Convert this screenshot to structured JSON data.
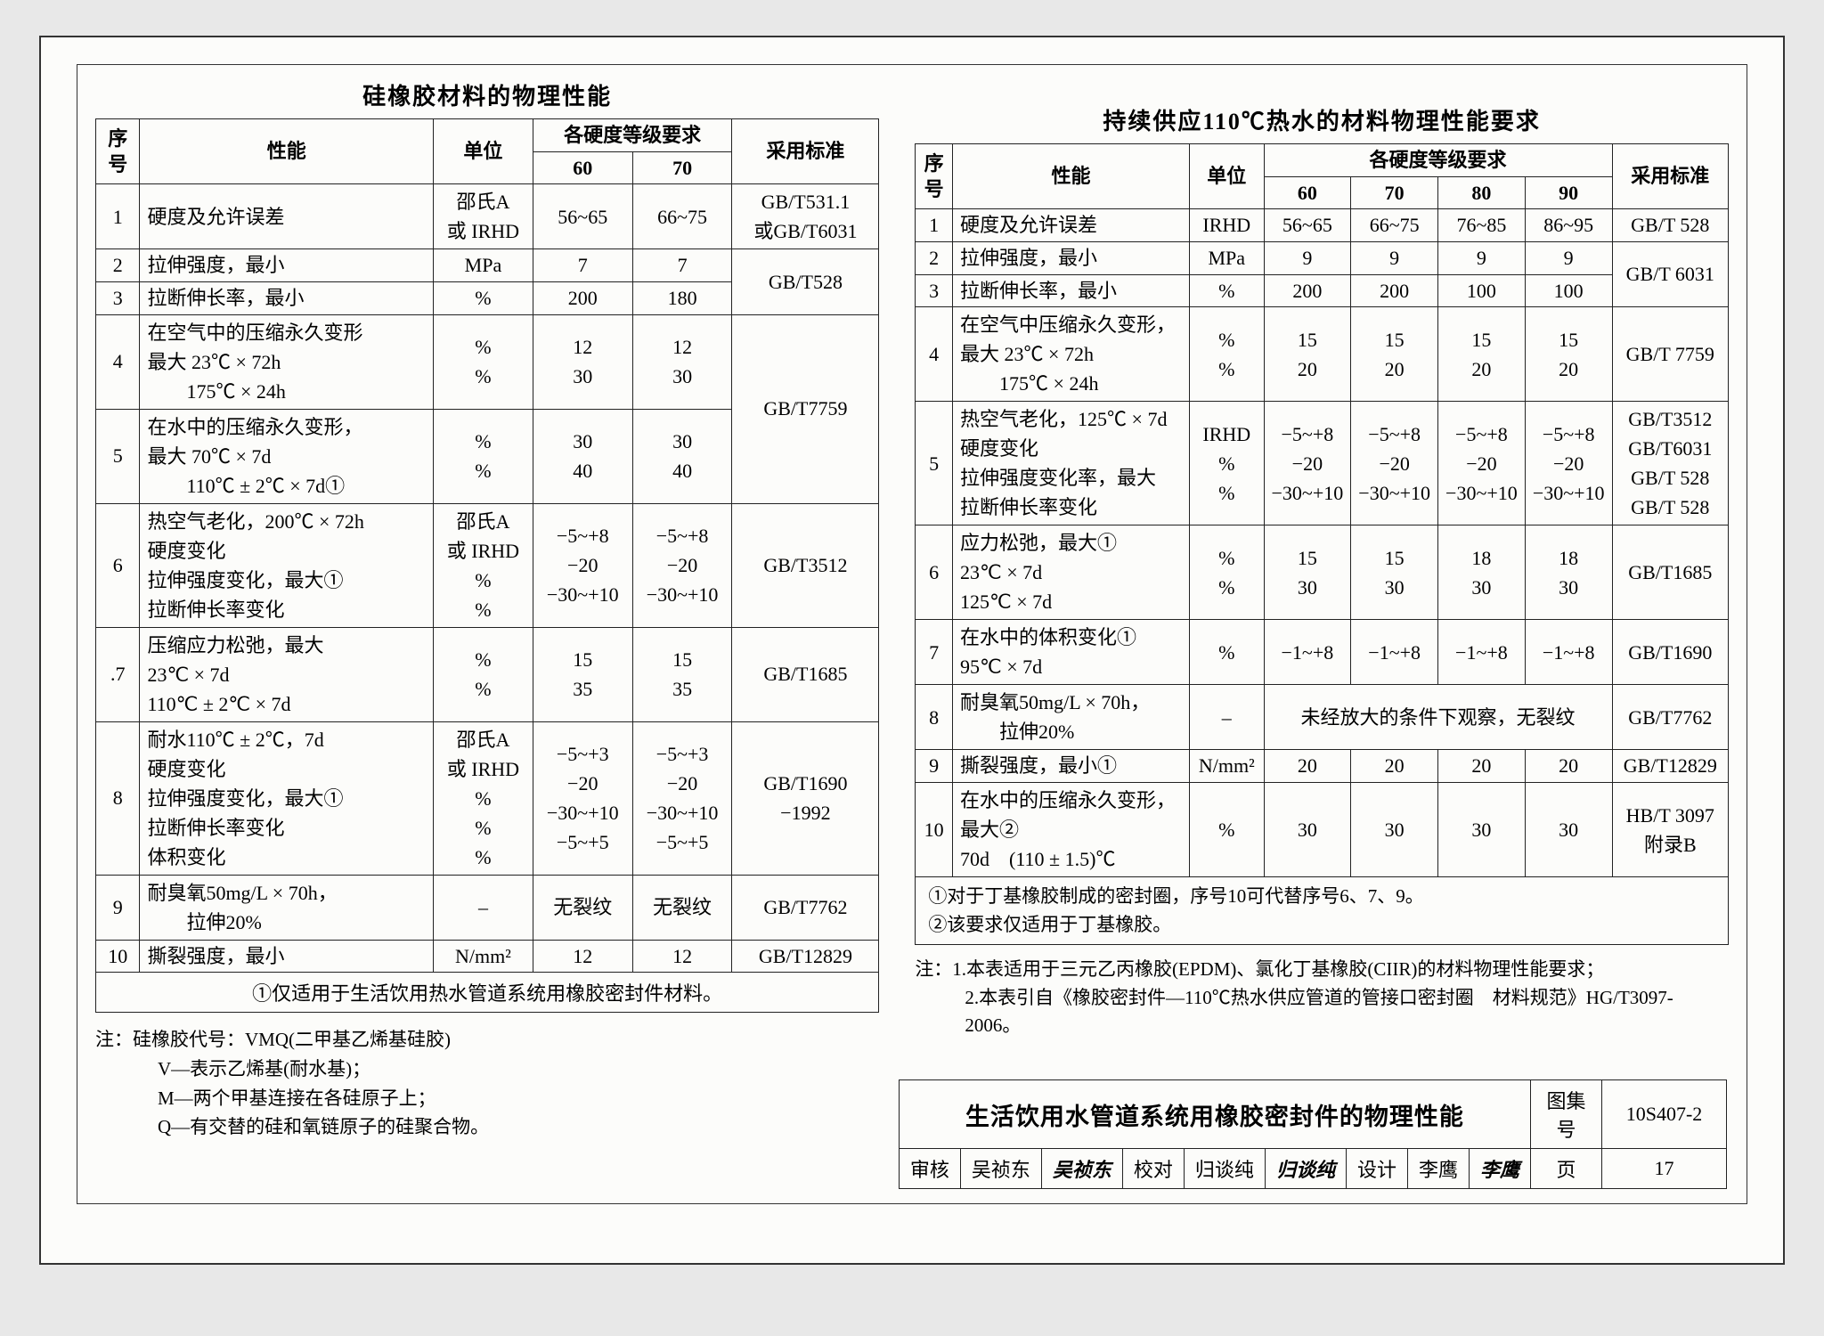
{
  "leftTable": {
    "title": "硅橡胶材料的物理性能",
    "headers": {
      "seq": "序号",
      "prop": "性能",
      "unit": "单位",
      "hardGroup": "各硬度等级要求",
      "h60": "60",
      "h70": "70",
      "std": "采用标准"
    },
    "rows": {
      "r1": {
        "seq": "1",
        "prop": "硬度及允许误差",
        "unit": "邵氏A\n或 IRHD",
        "v60": "56~65",
        "v70": "66~75",
        "std": "GB/T531.1\n或GB/T6031"
      },
      "r2": {
        "seq": "2",
        "prop": "拉伸强度，最小",
        "unit": "MPa",
        "v60": "7",
        "v70": "7",
        "std": "GB/T528"
      },
      "r3": {
        "seq": "3",
        "prop": "拉断伸长率，最小",
        "unit": "%",
        "v60": "200",
        "v70": "180"
      },
      "r4": {
        "seq": "4",
        "prop": "在空气中的压缩永久变形\n最大 23℃ × 72h\n　　175℃ × 24h",
        "unit": "%\n%",
        "v60": "12\n30",
        "v70": "12\n30",
        "std": "GB/T7759"
      },
      "r5": {
        "seq": "5",
        "prop": "在水中的压缩永久变形，\n最大 70℃ × 7d\n　　110℃ ± 2℃ × 7d①",
        "unit": "%\n%",
        "v60": "30\n40",
        "v70": "30\n40"
      },
      "r6": {
        "seq": "6",
        "prop": "热空气老化，200℃ × 72h\n硬度变化\n拉伸强度变化，最大①\n拉断伸长率变化",
        "unit": "邵氏A\n或 IRHD\n%\n%",
        "v60": "−5~+8\n−20\n−30~+10",
        "v70": "−5~+8\n−20\n−30~+10",
        "std": "GB/T3512"
      },
      "r7": {
        "seq": ".7",
        "prop": "压缩应力松弛，最大\n23℃ × 7d\n110℃ ± 2℃ × 7d",
        "unit": "%\n%",
        "v60": "15\n35",
        "v70": "15\n35",
        "std": "GB/T1685"
      },
      "r8": {
        "seq": "8",
        "prop": "耐水110℃ ± 2℃，7d\n硬度变化\n拉伸强度变化，最大①\n拉断伸长率变化\n体积变化",
        "unit": "邵氏A\n或 IRHD\n%\n%\n%",
        "v60": "−5~+3\n−20\n−30~+10\n−5~+5",
        "v70": "−5~+3\n−20\n−30~+10\n−5~+5",
        "std": "GB/T1690\n−1992"
      },
      "r9": {
        "seq": "9",
        "prop": "耐臭氧50mg/L × 70h，\n　　拉伸20%",
        "unit": "–",
        "v60": "无裂纹",
        "v70": "无裂纹",
        "std": "GB/T7762"
      },
      "r10": {
        "seq": "10",
        "prop": "撕裂强度，最小",
        "unit": "N/mm²",
        "v60": "12",
        "v70": "12",
        "std": "GB/T12829"
      }
    },
    "footnote": "①仅适用于生活饮用热水管道系统用橡胶密封件材料。",
    "notes": {
      "l0": "注：硅橡胶代号：VMQ(二甲基乙烯基硅胶)",
      "l1": "V—表示乙烯基(耐水基)；",
      "l2": "M—两个甲基连接在各硅原子上；",
      "l3": "Q—有交替的硅和氧链原子的硅聚合物。"
    }
  },
  "rightTable": {
    "title": "持续供应110℃热水的材料物理性能要求",
    "headers": {
      "seq": "序号",
      "prop": "性能",
      "unit": "单位",
      "hardGroup": "各硬度等级要求",
      "h60": "60",
      "h70": "70",
      "h80": "80",
      "h90": "90",
      "std": "采用标准"
    },
    "rows": {
      "r1": {
        "seq": "1",
        "prop": "硬度及允许误差",
        "unit": "IRHD",
        "v60": "56~65",
        "v70": "66~75",
        "v80": "76~85",
        "v90": "86~95",
        "std": "GB/T 528"
      },
      "r2": {
        "seq": "2",
        "prop": "拉伸强度，最小",
        "unit": "MPa",
        "v60": "9",
        "v70": "9",
        "v80": "9",
        "v90": "9",
        "std": "GB/T 6031"
      },
      "r3": {
        "seq": "3",
        "prop": "拉断伸长率，最小",
        "unit": "%",
        "v60": "200",
        "v70": "200",
        "v80": "100",
        "v90": "100"
      },
      "r4": {
        "seq": "4",
        "prop": "在空气中压缩永久变形，\n最大 23℃ × 72h\n　　175℃ × 24h",
        "unit": "%\n%",
        "v60": "15\n20",
        "v70": "15\n20",
        "v80": "15\n20",
        "v90": "15\n20",
        "std": "GB/T 7759"
      },
      "r5": {
        "seq": "5",
        "prop": "热空气老化，125℃ × 7d\n硬度变化\n拉伸强度变化率，最大\n拉断伸长率变化",
        "unit": "IRHD\n%\n%",
        "v60": "−5~+8\n−20\n−30~+10",
        "v70": "−5~+8\n−20\n−30~+10",
        "v80": "−5~+8\n−20\n−30~+10",
        "v90": "−5~+8\n−20\n−30~+10",
        "std": "GB/T3512\nGB/T6031\nGB/T 528\nGB/T 528"
      },
      "r6": {
        "seq": "6",
        "prop": "应力松弛，最大①\n23℃ × 7d\n125℃ × 7d",
        "unit": "%\n%",
        "v60": "15\n30",
        "v70": "15\n30",
        "v80": "18\n30",
        "v90": "18\n30",
        "std": "GB/T1685"
      },
      "r7": {
        "seq": "7",
        "prop": "在水中的体积变化①\n95℃ × 7d",
        "unit": "%",
        "v60": "−1~+8",
        "v70": "−1~+8",
        "v80": "−1~+8",
        "v90": "−1~+8",
        "std": "GB/T1690"
      },
      "r8": {
        "seq": "8",
        "prop": "耐臭氧50mg/L × 70h，\n　　拉伸20%",
        "unit": "–",
        "span": "未经放大的条件下观察，无裂纹",
        "std": "GB/T7762"
      },
      "r9": {
        "seq": "9",
        "prop": "撕裂强度，最小①",
        "unit": "N/mm²",
        "v60": "20",
        "v70": "20",
        "v80": "20",
        "v90": "20",
        "std": "GB/T12829"
      },
      "r10": {
        "seq": "10",
        "prop": "在水中的压缩永久变形，\n最大②\n70d　(110 ± 1.5)℃",
        "unit": "%",
        "v60": "30",
        "v70": "30",
        "v80": "30",
        "v90": "30",
        "std": "HB/T 3097\n附录B"
      }
    },
    "footnotes": {
      "f1": "①对于丁基橡胶制成的密封圈，序号10可代替序号6、7、9。",
      "f2": "②该要求仅适用于丁基橡胶。"
    },
    "notes": {
      "n1": "注：1.本表适用于三元乙丙橡胶(EPDM)、氯化丁基橡胶(CIIR)的材料物理性能要求；",
      "n2": "2.本表引自《橡胶密封件—110℃热水供应管道的管接口密封圈　材料规范》HG/T3097-2006。"
    }
  },
  "titleBlock": {
    "main": "生活饮用水管道系统用橡胶密封件的物理性能",
    "drawingLabel": "图集号",
    "drawingNo": "10S407-2",
    "review": "审核",
    "reviewer": "吴祯东",
    "reviewerSig": "吴祯东",
    "check": "校对",
    "checker": "归谈纯",
    "checkerSig": "归谈纯",
    "design": "设计",
    "designer": "李鹰",
    "designerSig": "李鹰",
    "pageLabel": "页",
    "pageNo": "17"
  }
}
